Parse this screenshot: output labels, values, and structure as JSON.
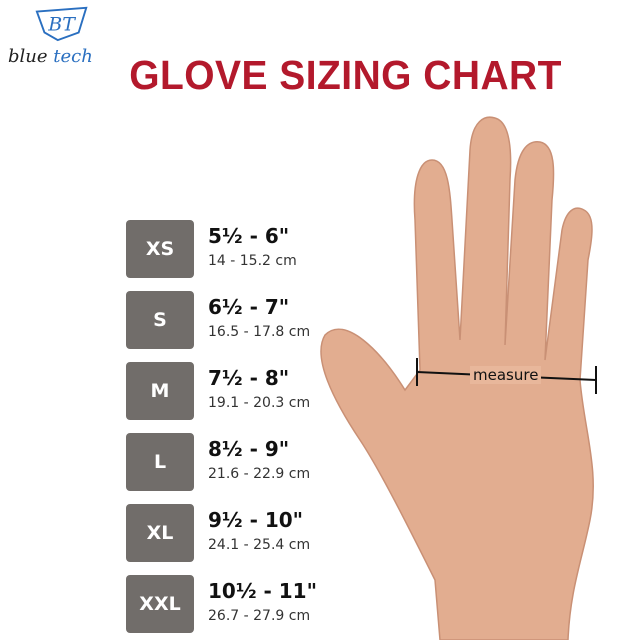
{
  "logo": {
    "brand_first": "blue",
    "brand_second": "tech",
    "monogram": "BT"
  },
  "title": "GLOVE SIZING CHART",
  "sizes": [
    {
      "size": "XS",
      "inches": "5½ - 6\"",
      "cm": "14 - 15.2 cm"
    },
    {
      "size": "S",
      "inches": "6½ - 7\"",
      "cm": "16.5 - 17.8 cm"
    },
    {
      "size": "M",
      "inches": "7½ - 8\"",
      "cm": "19.1 - 20.3 cm"
    },
    {
      "size": "L",
      "inches": "8½ - 9\"",
      "cm": "21.6 - 22.9 cm"
    },
    {
      "size": "XL",
      "inches": "9½ - 10\"",
      "cm": "24.1 - 25.4 cm"
    },
    {
      "size": "XXL",
      "inches": "10½ - 11\"",
      "cm": "26.7 - 27.9 cm"
    }
  ],
  "hand": {
    "measure_label": "measure"
  },
  "colors": {
    "title": "#b3192c",
    "badge": "#716d6a",
    "logo_blue": "#2a6fc0",
    "skin": "#e2ad90"
  }
}
